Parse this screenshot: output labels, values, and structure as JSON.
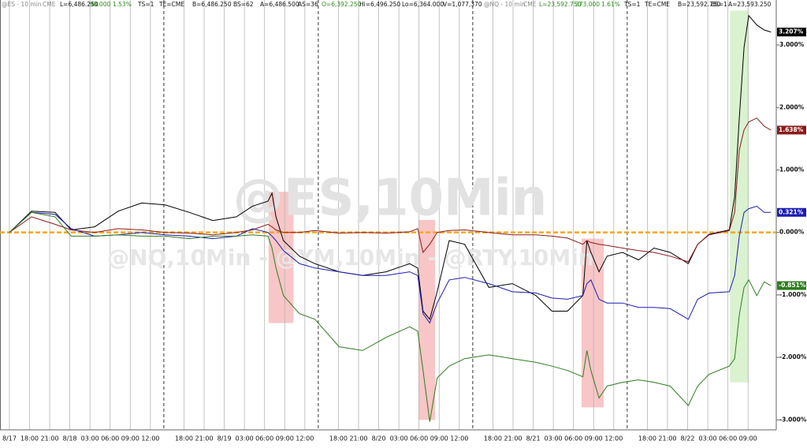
{
  "chart_data": {
    "type": "line",
    "header": [
      {
        "text": "@ES - 10 min",
        "color": "#888888"
      },
      {
        "text": "CME",
        "color": "#888888"
      },
      {
        "text": "L=6,486.250",
        "color": "#111111"
      },
      {
        "text": "98.000",
        "color": "#2e8b1e"
      },
      {
        "text": "1.53%",
        "color": "#2e8b1e"
      },
      {
        "text": "TS=1",
        "color": "#111111"
      },
      {
        "text": "TE=CME",
        "color": "#111111"
      },
      {
        "text": "B=6,486.250",
        "color": "#111111"
      },
      {
        "text": "BS=62",
        "color": "#111111"
      },
      {
        "text": "A=6,486.500",
        "color": "#111111"
      },
      {
        "text": "AS=36",
        "color": "#111111"
      },
      {
        "text": "O=6,392.250",
        "color": "#2e8b1e"
      },
      {
        "text": "Hi=6,496.250",
        "color": "#111111"
      },
      {
        "text": "Lo=6,364.000",
        "color": "#111111"
      },
      {
        "text": "V=1,077,370",
        "color": "#111111"
      },
      {
        "text": "@NQ - 10 min",
        "color": "#888888"
      },
      {
        "text": "CME",
        "color": "#888888"
      },
      {
        "text": "L=23,592.750",
        "color": "#2e8b1e"
      },
      {
        "text": "373.000",
        "color": "#2e8b1e"
      },
      {
        "text": "1.61%",
        "color": "#2e8b1e"
      },
      {
        "text": "TS=1",
        "color": "#111111"
      },
      {
        "text": "TE=CME",
        "color": "#111111"
      },
      {
        "text": "B=23,592.750",
        "color": "#111111"
      },
      {
        "text": "BS=1",
        "color": "#111111"
      },
      {
        "text": "A=23,593.250",
        "color": "#111111"
      }
    ],
    "watermark": [
      "@ES,10Min",
      "@NQ,10Min - @YM,10Min - @RTY,10Min"
    ],
    "x": [
      0.0,
      3.3,
      6.8,
      9.2,
      12.7,
      16.2,
      19.7,
      23.2,
      26.8,
      30.3,
      33.8,
      36.2,
      38.5,
      39.1,
      39.7,
      40.8,
      43.2,
      45.5,
      49.1,
      52.6,
      56.1,
      59.6,
      60.8,
      61.6,
      62.6,
      63.7,
      65.5,
      67.8,
      71.4,
      74.9,
      78.4,
      80.8,
      83.1,
      85.4,
      86.0,
      86.6,
      87.8,
      89.0,
      91.3,
      93.7,
      96.0,
      98.4,
      101.1,
      102.5,
      104.2,
      107.2,
      108.0,
      108.7,
      109.4,
      110.1,
      111.3,
      112.4,
      113.4
    ],
    "series": [
      {
        "color": "#000000",
        "last_label": "3.207%",
        "values": [
          0,
          0.34,
          0.32,
          0.04,
          0.09,
          0.34,
          0.47,
          0.44,
          0.32,
          0.19,
          0.25,
          0.42,
          0.5,
          0.63,
          0.25,
          -0.13,
          -0.38,
          -0.5,
          -0.63,
          -0.69,
          -0.63,
          -0.5,
          -0.57,
          -1.26,
          -1.39,
          -0.95,
          -0.13,
          -0.19,
          -0.88,
          -0.82,
          -1.01,
          -1.26,
          -1.26,
          -1.01,
          -0.13,
          -0.32,
          -0.63,
          -0.38,
          -0.32,
          -0.44,
          -0.25,
          -0.32,
          -0.5,
          -0.19,
          -0.03,
          0.04,
          0.57,
          1.83,
          2.96,
          3.47,
          3.32,
          3.24,
          3.207
        ]
      },
      {
        "color": "#8b1a1a",
        "last_label": "1.638%",
        "values": [
          0,
          0.25,
          0.13,
          0.04,
          0,
          0.06,
          0.04,
          0,
          -0.01,
          -0.04,
          0,
          0.04,
          0.13,
          0.09,
          0.04,
          0,
          0,
          0.03,
          -0.01,
          0,
          -0.01,
          0.01,
          0.06,
          -0.32,
          -0.19,
          0,
          0.03,
          0.04,
          0,
          -0.04,
          -0.04,
          -0.06,
          -0.09,
          -0.19,
          -0.13,
          -0.16,
          -0.19,
          -0.21,
          -0.25,
          -0.29,
          -0.32,
          -0.38,
          -0.47,
          -0.19,
          -0.04,
          0.03,
          0.32,
          1.32,
          1.64,
          1.77,
          1.83,
          1.7,
          1.638
        ]
      },
      {
        "color": "#1c1cb0",
        "last_label": "0.321%",
        "values": [
          0,
          0.32,
          0.29,
          0.06,
          -0.06,
          -0.04,
          0,
          -0.04,
          -0.06,
          -0.1,
          -0.06,
          0.06,
          0,
          -0.06,
          -0.13,
          -0.29,
          -0.5,
          -0.57,
          -0.63,
          -0.69,
          -0.69,
          -0.63,
          -0.69,
          -1.3,
          -1.45,
          -1.13,
          -0.76,
          -0.72,
          -0.82,
          -0.95,
          -0.97,
          -1.05,
          -1.07,
          -1.01,
          -0.82,
          -0.76,
          -1.07,
          -1.13,
          -1.13,
          -1.2,
          -1.2,
          -1.22,
          -1.39,
          -1.07,
          -0.97,
          -0.95,
          -0.69,
          -0.06,
          0.32,
          0.38,
          0.42,
          0.32,
          0.321
        ]
      },
      {
        "color": "#2e7d1e",
        "last_label": "-0.851%",
        "values": [
          0,
          0.32,
          0.25,
          -0.06,
          -0.06,
          -0.04,
          -0.06,
          -0.06,
          -0.1,
          -0.06,
          -0.06,
          -0.04,
          -0.06,
          -0.25,
          -0.57,
          -1.01,
          -1.3,
          -1.39,
          -1.83,
          -1.89,
          -1.68,
          -1.51,
          -1.58,
          -2.21,
          -3.03,
          -2.33,
          -2.14,
          -2.02,
          -1.96,
          -2.02,
          -2.08,
          -2.14,
          -2.21,
          -2.31,
          -1.89,
          -2.21,
          -2.65,
          -2.46,
          -2.4,
          -2.36,
          -2.4,
          -2.46,
          -2.77,
          -2.46,
          -2.27,
          -2.14,
          -2.02,
          -1.32,
          -0.88,
          -0.76,
          -1.01,
          -0.79,
          -0.851
        ]
      }
    ],
    "xlim": [
      -1.4,
      114.2
    ],
    "ylim": [
      -3.16,
      3.72
    ],
    "xticks": [
      {
        "value": 0,
        "label": "8/17"
      },
      {
        "value": 3,
        "label": "18:00"
      },
      {
        "value": 6,
        "label": "21:00"
      },
      {
        "value": 9,
        "label": "8/18"
      },
      {
        "value": 12,
        "label": "03:00"
      },
      {
        "value": 15,
        "label": "06:00"
      },
      {
        "value": 18,
        "label": "09:00"
      },
      {
        "value": 21,
        "label": "12:00"
      },
      {
        "value": 26,
        "label": "18:00"
      },
      {
        "value": 29,
        "label": "21:00"
      },
      {
        "value": 32,
        "label": "8/19"
      },
      {
        "value": 35,
        "label": "03:00"
      },
      {
        "value": 38,
        "label": "06:00"
      },
      {
        "value": 41,
        "label": "09:00"
      },
      {
        "value": 44,
        "label": "12:00"
      },
      {
        "value": 49,
        "label": "18:00"
      },
      {
        "value": 52,
        "label": "21:00"
      },
      {
        "value": 55,
        "label": "8/20"
      },
      {
        "value": 58,
        "label": "03:00"
      },
      {
        "value": 61,
        "label": "06:00"
      },
      {
        "value": 64,
        "label": "09:00"
      },
      {
        "value": 67,
        "label": "12:00"
      },
      {
        "value": 72,
        "label": "18:00"
      },
      {
        "value": 75,
        "label": "21:00"
      },
      {
        "value": 78,
        "label": "8/21"
      },
      {
        "value": 81,
        "label": "03:00"
      },
      {
        "value": 84,
        "label": "06:00"
      },
      {
        "value": 87,
        "label": "09:00"
      },
      {
        "value": 90,
        "label": "12:00"
      },
      {
        "value": 95,
        "label": "18:00"
      },
      {
        "value": 98,
        "label": "21:00"
      },
      {
        "value": 101,
        "label": "8/22"
      },
      {
        "value": 104,
        "label": "03:00"
      },
      {
        "value": 107,
        "label": "06:00"
      },
      {
        "value": 110,
        "label": "09:00"
      }
    ],
    "yticks": [
      {
        "value": 3,
        "label": "3.000%"
      },
      {
        "value": 2,
        "label": "2.000%"
      },
      {
        "value": 1,
        "label": "1.000%"
      },
      {
        "value": 0,
        "label": "0.000%"
      },
      {
        "value": -1,
        "label": "-1.000%"
      },
      {
        "value": -2,
        "label": "-2.000%"
      },
      {
        "value": -3,
        "label": "-3.000%"
      }
    ],
    "session_breaks": [
      23,
      46,
      69,
      92
    ],
    "zero_line": {
      "value": 0,
      "color": "#f5a623"
    },
    "highlights": [
      {
        "x": [
          38.6,
          42.3
        ],
        "y": [
          -1.45,
          0.65
        ],
        "color": "#f6b3b3"
      },
      {
        "x": [
          60.9,
          63.4
        ],
        "y": [
          -3.0,
          0.2
        ],
        "color": "#f6b3b3"
      },
      {
        "x": [
          85.2,
          88.5
        ],
        "y": [
          -2.8,
          -0.1
        ],
        "color": "#f6b3b3"
      },
      {
        "x": [
          107.3,
          110.1
        ],
        "y": [
          -2.4,
          3.55
        ],
        "color": "#cdeec0"
      }
    ],
    "grid": true
  }
}
